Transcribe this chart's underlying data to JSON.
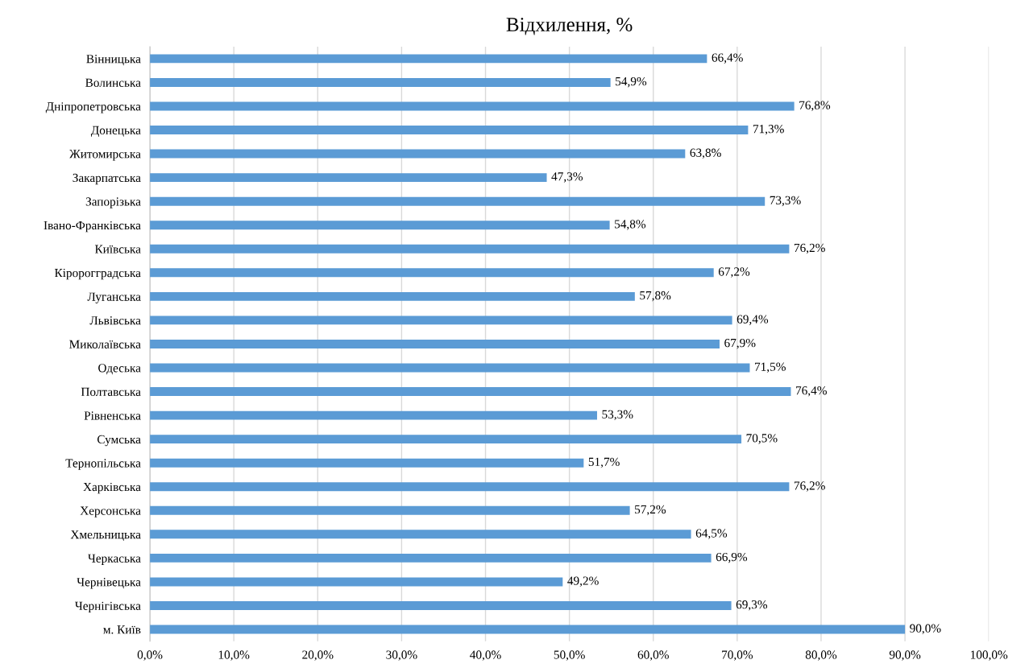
{
  "chart_data": {
    "type": "bar",
    "orientation": "horizontal",
    "title": "Відхилення, %",
    "categories": [
      "Вінницька",
      "Волинська",
      "Дніпропетровська",
      "Донецька",
      "Житомирська",
      "Закарпатська",
      "Запорізька",
      "Івано-Франківська",
      "Київська",
      "Кіророгградська",
      "Луганська",
      "Львівська",
      "Миколаївська",
      "Одеська",
      "Полтавська",
      "Рівненська",
      "Сумська",
      "Тернопільська",
      "Харківська",
      "Херсонська",
      "Хмельницька",
      "Черкаська",
      "Чернівецька",
      "Чернігівська",
      "м. Київ"
    ],
    "values": [
      66.4,
      54.9,
      76.8,
      71.3,
      63.8,
      47.3,
      73.3,
      54.8,
      76.2,
      67.2,
      57.8,
      69.4,
      67.9,
      71.5,
      76.4,
      53.3,
      70.5,
      51.7,
      76.2,
      57.2,
      64.5,
      66.9,
      49.2,
      69.3,
      90.0
    ],
    "value_labels": [
      "66,4%",
      "54,9%",
      "76,8%",
      "71,3%",
      "63,8%",
      "47,3%",
      "73,3%",
      "54,8%",
      "76,2%",
      "67,2%",
      "57,8%",
      "69,4%",
      "67,9%",
      "71,5%",
      "76,4%",
      "53,3%",
      "70,5%",
      "51,7%",
      "76,2%",
      "57,2%",
      "64,5%",
      "66,9%",
      "49,2%",
      "69,3%",
      "90,0%"
    ],
    "color": "#5b9bd5",
    "xlim": [
      0,
      100
    ],
    "xticks": [
      {
        "value": 0,
        "label": "0,0%"
      },
      {
        "value": 10,
        "label": "10,0%"
      },
      {
        "value": 20,
        "label": "20,0%"
      },
      {
        "value": 30,
        "label": "30,0%"
      },
      {
        "value": 40,
        "label": "40,0%"
      },
      {
        "value": 50,
        "label": "50,0%"
      },
      {
        "value": 60,
        "label": "60,0%"
      },
      {
        "value": 70,
        "label": "70,0%"
      },
      {
        "value": 80,
        "label": "80,0%"
      },
      {
        "value": 90,
        "label": "90,0%"
      },
      {
        "value": 100,
        "label": "100,0%"
      }
    ],
    "grid": "x"
  }
}
